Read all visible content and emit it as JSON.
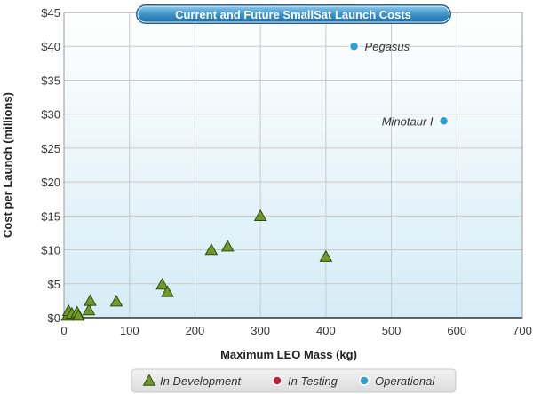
{
  "chart_data": {
    "type": "scatter",
    "title": "Current and Future SmallSat Launch Costs",
    "xlabel": "Maximum LEO Mass (kg)",
    "ylabel": "Cost per Launch (millions)",
    "xlim": [
      0,
      700
    ],
    "ylim": [
      0,
      45
    ],
    "x_ticks": [
      "0",
      "100",
      "200",
      "300",
      "400",
      "500",
      "600",
      "700"
    ],
    "y_ticks": [
      "$0",
      "$5",
      "$10",
      "$15",
      "$20",
      "$25",
      "$30",
      "$35",
      "$40",
      "$45"
    ],
    "grid": true,
    "legend_position": "bottom",
    "series": [
      {
        "name": "In Development",
        "marker": "triangle",
        "color": "#6f9a2a",
        "points": [
          {
            "x": 5,
            "y": 0.3
          },
          {
            "x": 7,
            "y": 1.0
          },
          {
            "x": 12,
            "y": 0.6
          },
          {
            "x": 20,
            "y": 0.8
          },
          {
            "x": 22,
            "y": 0.3
          },
          {
            "x": 38,
            "y": 1.1
          },
          {
            "x": 40,
            "y": 2.5
          },
          {
            "x": 80,
            "y": 2.4
          },
          {
            "x": 150,
            "y": 4.9
          },
          {
            "x": 158,
            "y": 3.8
          },
          {
            "x": 225,
            "y": 10.0
          },
          {
            "x": 250,
            "y": 10.5
          },
          {
            "x": 300,
            "y": 15.0
          },
          {
            "x": 400,
            "y": 9.0
          }
        ]
      },
      {
        "name": "In Testing",
        "marker": "circle",
        "color": "#c3203a",
        "points": []
      },
      {
        "name": "Operational",
        "marker": "circle",
        "color": "#2c9fd3",
        "points": [
          {
            "x": 443,
            "y": 40,
            "label": "Pegasus"
          },
          {
            "x": 580,
            "y": 29,
            "label": "Minotaur I"
          }
        ]
      }
    ]
  }
}
